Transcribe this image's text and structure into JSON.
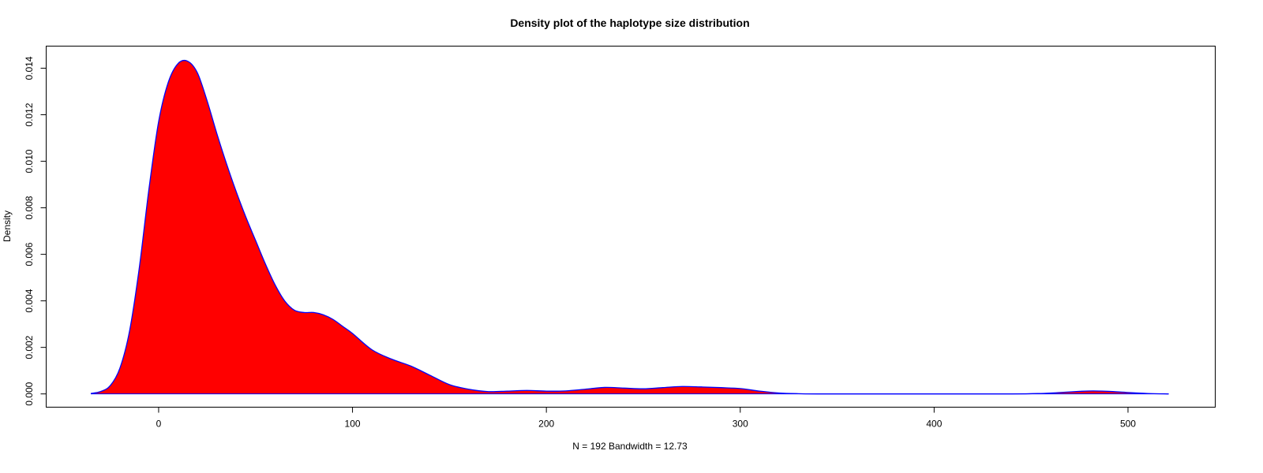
{
  "chart_data": {
    "type": "area",
    "title": "Density plot of the haplotype size distribution",
    "xlabel": "N = 192   Bandwidth = 12.73",
    "ylabel": "Density",
    "xlim": [
      -58,
      545
    ],
    "ylim": [
      -0.00057,
      0.01495
    ],
    "xticks": [
      0,
      100,
      200,
      300,
      400,
      500
    ],
    "yticks": [
      0.0,
      0.002,
      0.004,
      0.006,
      0.008,
      0.01,
      0.012,
      0.014
    ],
    "ytick_labels": [
      "0.000",
      "0.002",
      "0.004",
      "0.006",
      "0.008",
      "0.010",
      "0.012",
      "0.014"
    ],
    "fill_color": "#ff0000",
    "line_color": "#0000ff",
    "grid": false,
    "series": [
      {
        "x": [
          -35,
          -30,
          -25,
          -20,
          -15,
          -10,
          -5,
          0,
          5,
          10,
          15,
          20,
          25,
          30,
          35,
          40,
          45,
          50,
          55,
          60,
          65,
          70,
          75,
          80,
          85,
          90,
          95,
          100,
          110,
          120,
          130,
          140,
          150,
          160,
          170,
          180,
          190,
          200,
          210,
          220,
          230,
          240,
          250,
          260,
          270,
          280,
          290,
          300,
          310,
          320,
          330,
          340,
          360,
          400,
          440,
          455,
          465,
          475,
          482,
          490,
          500,
          510,
          521
        ],
        "y": [
          2e-05,
          0.0001,
          0.00035,
          0.0011,
          0.0027,
          0.0054,
          0.0088,
          0.0117,
          0.0134,
          0.0142,
          0.0143,
          0.0138,
          0.0126,
          0.0112,
          0.0099,
          0.0087,
          0.0076,
          0.0066,
          0.0056,
          0.0047,
          0.004,
          0.0036,
          0.0035,
          0.0035,
          0.0034,
          0.0032,
          0.0029,
          0.0026,
          0.0019,
          0.0015,
          0.0012,
          0.0008,
          0.0004,
          0.0002,
          0.0001,
          0.00012,
          0.00015,
          0.00012,
          0.00013,
          0.0002,
          0.00028,
          0.00025,
          0.00022,
          0.00027,
          0.00032,
          0.0003,
          0.00027,
          0.00023,
          0.00012,
          4e-05,
          1e-05,
          0.0,
          0.0,
          0.0,
          0.0,
          2e-05,
          6e-05,
          0.00011,
          0.00013,
          0.00011,
          6e-05,
          2e-05,
          0.0
        ]
      }
    ]
  }
}
